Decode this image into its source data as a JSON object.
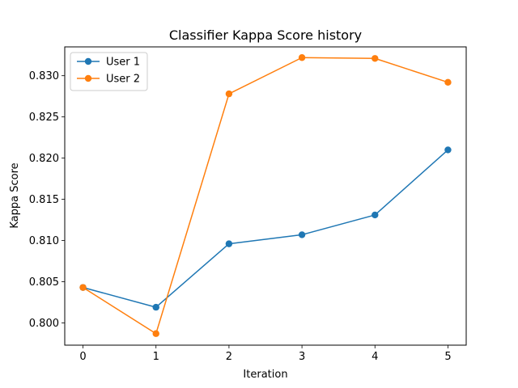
{
  "chart_data": {
    "type": "line",
    "title": "Classifier Kappa Score history",
    "xlabel": "Iteration",
    "ylabel": "Kappa Score",
    "x": [
      0,
      1,
      2,
      3,
      4,
      5
    ],
    "xlim": [
      -0.25,
      5.25
    ],
    "ylim": [
      0.7973,
      0.8335
    ],
    "x_ticks": [
      0,
      1,
      2,
      3,
      4,
      5
    ],
    "y_ticks": [
      0.8,
      0.805,
      0.81,
      0.815,
      0.82,
      0.825,
      0.83
    ],
    "y_tick_labels": [
      "0.800",
      "0.805",
      "0.810",
      "0.815",
      "0.820",
      "0.825",
      "0.830"
    ],
    "grid": false,
    "legend_position": "top-left",
    "series": [
      {
        "name": "User 1",
        "color": "#1f77b4",
        "marker": "circle",
        "values": [
          0.8043,
          0.8019,
          0.8096,
          0.8107,
          0.8131,
          0.821
        ]
      },
      {
        "name": "User 2",
        "color": "#ff7f0e",
        "marker": "circle",
        "values": [
          0.8043,
          0.7987,
          0.8278,
          0.8322,
          0.8321,
          0.8292
        ]
      }
    ]
  }
}
